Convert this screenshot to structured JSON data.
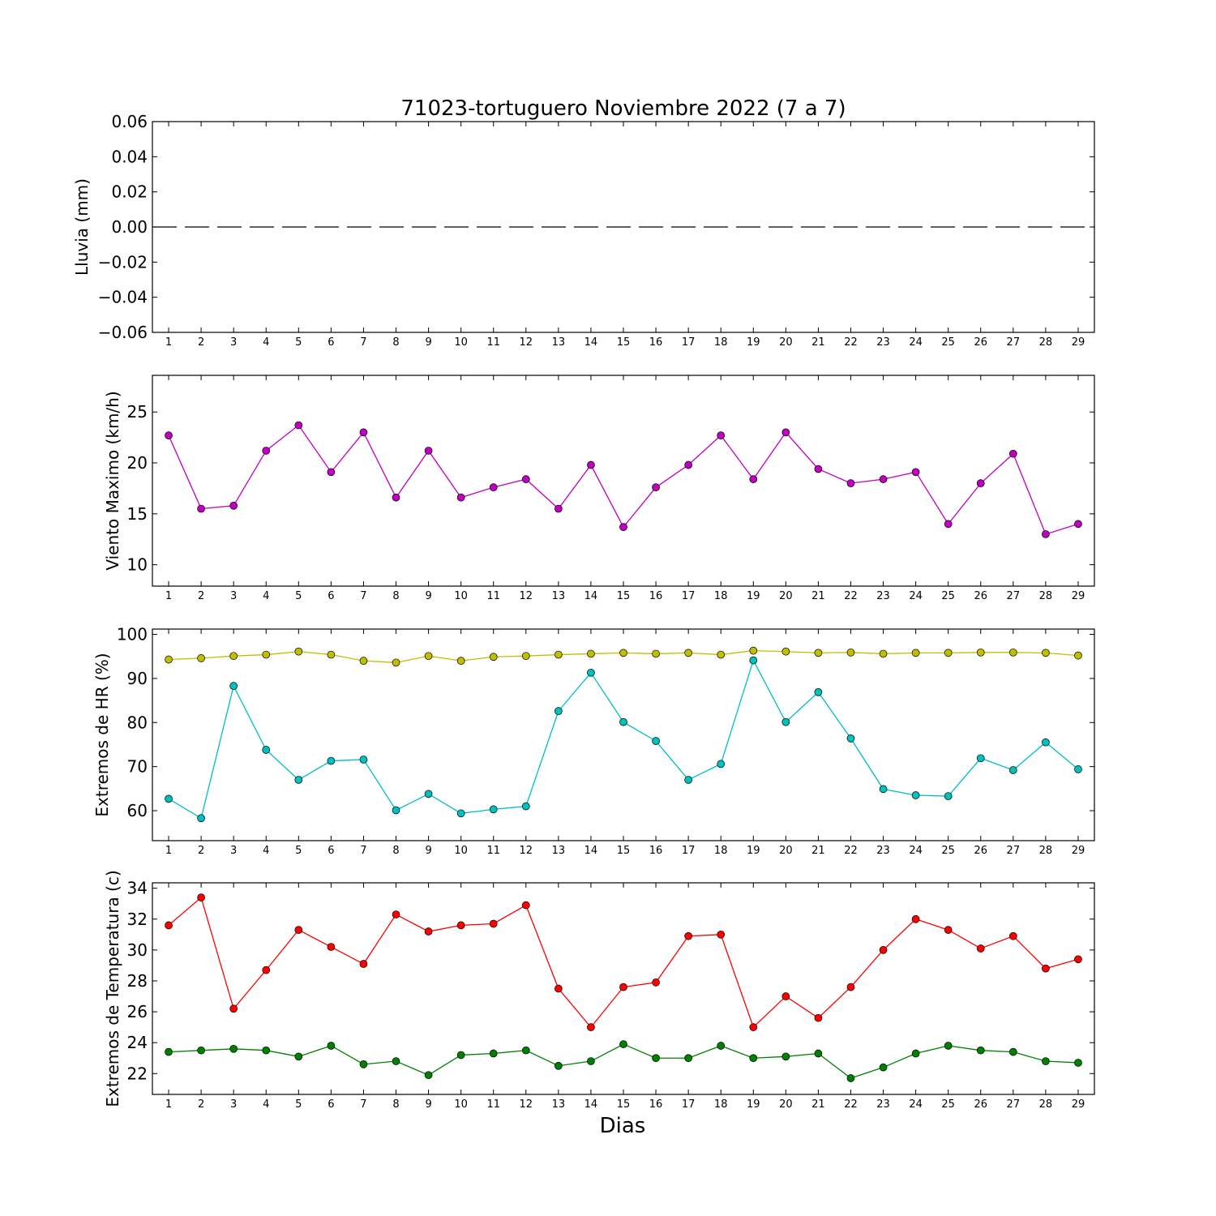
{
  "chart_data": [
    {
      "type": "line",
      "title": "71023-tortuguero Noviembre 2022  (7 a 7)",
      "ylabel": "Lluvia (mm)",
      "xlabel": "",
      "x": [
        1,
        2,
        3,
        4,
        5,
        6,
        7,
        8,
        9,
        10,
        11,
        12,
        13,
        14,
        15,
        16,
        17,
        18,
        19,
        20,
        21,
        22,
        23,
        24,
        25,
        26,
        27,
        28,
        29
      ],
      "xlim": [
        0.5,
        29.5
      ],
      "ylim": [
        -0.06,
        0.06
      ],
      "yticks": [
        0.06,
        0.04,
        0.02,
        0.0,
        -0.02,
        -0.04,
        -0.06
      ],
      "ytick_labels": [
        "0.06",
        "0.04",
        "0.02",
        "0.00",
        "−0.02",
        "−0.04",
        "−0.06"
      ],
      "series": [
        {
          "values": [
            0,
            0,
            0,
            0,
            0,
            0,
            0,
            0,
            0,
            0,
            0,
            0,
            0,
            0,
            0,
            0,
            0,
            0,
            0,
            0,
            0,
            0,
            0,
            0,
            0,
            0,
            0,
            0,
            0
          ],
          "color": "#000000",
          "style": "dashed",
          "marker": "none"
        }
      ]
    },
    {
      "type": "line",
      "title": "",
      "ylabel": "Viento Maximo (km/h)",
      "xlabel": "",
      "x": [
        1,
        2,
        3,
        4,
        5,
        6,
        7,
        8,
        9,
        10,
        11,
        12,
        13,
        14,
        15,
        16,
        17,
        18,
        19,
        20,
        21,
        22,
        23,
        24,
        25,
        26,
        27,
        28,
        29
      ],
      "xlim": [
        0.5,
        29.5
      ],
      "ylim": [
        7.9,
        28.6
      ],
      "yticks": [
        10,
        15,
        20,
        25
      ],
      "ytick_labels": [
        "10",
        "15",
        "20",
        "25"
      ],
      "series": [
        {
          "values": [
            22.7,
            15.5,
            15.8,
            21.2,
            23.7,
            19.1,
            23.0,
            16.6,
            21.2,
            16.6,
            17.6,
            18.4,
            15.5,
            19.8,
            13.7,
            17.6,
            19.8,
            22.7,
            18.4,
            23.0,
            19.4,
            18.0,
            18.4,
            19.1,
            14.0,
            18.0,
            20.9,
            13.0,
            14.0
          ],
          "color": "#bf00bf",
          "style": "solid",
          "marker": "circle"
        }
      ]
    },
    {
      "type": "line",
      "title": "",
      "ylabel": "Extremos de HR (%)",
      "xlabel": "",
      "x": [
        1,
        2,
        3,
        4,
        5,
        6,
        7,
        8,
        9,
        10,
        11,
        12,
        13,
        14,
        15,
        16,
        17,
        18,
        19,
        20,
        21,
        22,
        23,
        24,
        25,
        26,
        27,
        28,
        29
      ],
      "xlim": [
        0.5,
        29.5
      ],
      "ylim": [
        53.2,
        101.2
      ],
      "yticks": [
        60,
        70,
        80,
        90,
        100
      ],
      "ytick_labels": [
        "60",
        "70",
        "80",
        "90",
        "100"
      ],
      "series": [
        {
          "values": [
            94.3,
            94.6,
            95.1,
            95.4,
            96.1,
            95.4,
            94.0,
            93.6,
            95.1,
            94.0,
            94.9,
            95.1,
            95.4,
            95.6,
            95.8,
            95.6,
            95.8,
            95.4,
            96.3,
            96.1,
            95.8,
            95.9,
            95.6,
            95.8,
            95.8,
            95.9,
            95.9,
            95.8,
            95.2
          ],
          "color": "#bfbf00",
          "style": "solid",
          "marker": "circle"
        },
        {
          "values": [
            62.7,
            58.3,
            88.3,
            73.8,
            67.0,
            71.3,
            71.6,
            60.1,
            63.8,
            59.4,
            60.3,
            61.0,
            82.6,
            91.3,
            80.1,
            75.8,
            67.0,
            70.6,
            94.1,
            80.1,
            86.9,
            76.4,
            64.9,
            63.5,
            63.3,
            71.9,
            69.2,
            75.5,
            69.4
          ],
          "color": "#00bfbf",
          "style": "solid",
          "marker": "circle"
        }
      ]
    },
    {
      "type": "line",
      "title": "",
      "ylabel": "Extremos de Temperatura (c)",
      "xlabel": "Dias",
      "x": [
        1,
        2,
        3,
        4,
        5,
        6,
        7,
        8,
        9,
        10,
        11,
        12,
        13,
        14,
        15,
        16,
        17,
        18,
        19,
        20,
        21,
        22,
        23,
        24,
        25,
        26,
        27,
        28,
        29
      ],
      "xlim": [
        0.5,
        29.5
      ],
      "ylim": [
        20.65,
        34.35
      ],
      "yticks": [
        22,
        24,
        26,
        28,
        30,
        32,
        34
      ],
      "ytick_labels": [
        "22",
        "24",
        "26",
        "28",
        "30",
        "32",
        "34"
      ],
      "series": [
        {
          "values": [
            31.6,
            33.4,
            26.2,
            28.7,
            31.3,
            30.2,
            29.1,
            32.3,
            31.2,
            31.6,
            31.7,
            32.9,
            27.5,
            25.0,
            27.6,
            27.9,
            30.9,
            31.0,
            25.0,
            27.0,
            25.6,
            27.6,
            30.0,
            32.0,
            31.3,
            30.1,
            30.9,
            28.8,
            29.4
          ],
          "color": "#ff0000",
          "style": "solid",
          "marker": "circle"
        },
        {
          "values": [
            23.4,
            23.5,
            23.6,
            23.5,
            23.1,
            23.8,
            22.6,
            22.8,
            21.9,
            23.2,
            23.3,
            23.5,
            22.5,
            22.8,
            23.9,
            23.0,
            23.0,
            23.8,
            23.0,
            23.1,
            23.3,
            21.7,
            22.4,
            23.3,
            23.8,
            23.5,
            23.4,
            22.8,
            22.7
          ],
          "color": "#008000",
          "style": "solid",
          "marker": "circle"
        }
      ]
    }
  ]
}
